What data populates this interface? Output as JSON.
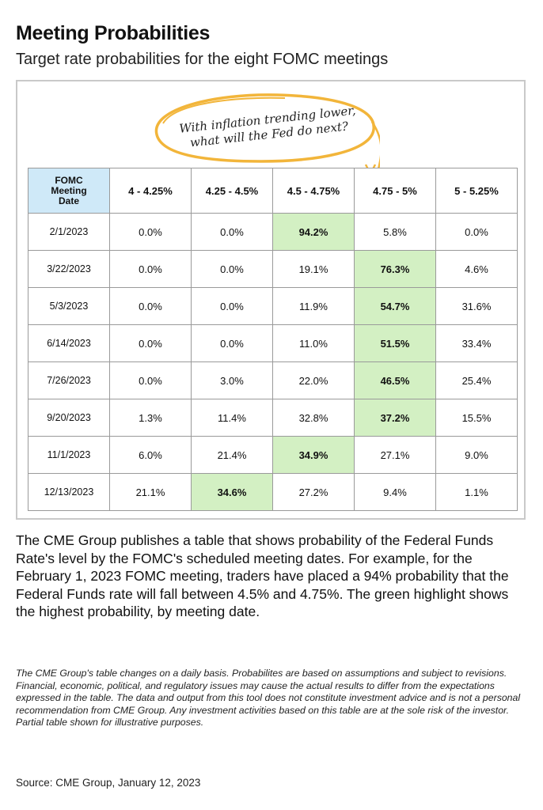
{
  "title": "Meeting Probabilities",
  "subtitle": "Target rate probabilities for the eight FOMC meetings",
  "callout": {
    "line1": "With inflation trending lower,",
    "line2": "what will the Fed do next?"
  },
  "colors": {
    "highlight": "#d3f0c3",
    "header_date_bg": "#cfe9f8",
    "callout_ellipse": "#f2b53a"
  },
  "chart_data": {
    "type": "table",
    "corner_header": [
      "FOMC",
      "Meeting",
      "Date"
    ],
    "columns": [
      "4 - 4.25%",
      "4.25 - 4.5%",
      "4.5 - 4.75%",
      "4.75 - 5%",
      "5 - 5.25%"
    ],
    "rows": [
      {
        "date": "2/1/2023",
        "values": [
          "0.0%",
          "0.0%",
          "94.2%",
          "5.8%",
          "0.0%"
        ],
        "highlight": 2
      },
      {
        "date": "3/22/2023",
        "values": [
          "0.0%",
          "0.0%",
          "19.1%",
          "76.3%",
          "4.6%"
        ],
        "highlight": 3
      },
      {
        "date": "5/3/2023",
        "values": [
          "0.0%",
          "0.0%",
          "11.9%",
          "54.7%",
          "31.6%"
        ],
        "highlight": 3
      },
      {
        "date": "6/14/2023",
        "values": [
          "0.0%",
          "0.0%",
          "11.0%",
          "51.5%",
          "33.4%"
        ],
        "highlight": 3
      },
      {
        "date": "7/26/2023",
        "values": [
          "0.0%",
          "3.0%",
          "22.0%",
          "46.5%",
          "25.4%"
        ],
        "highlight": 3
      },
      {
        "date": "9/20/2023",
        "values": [
          "1.3%",
          "11.4%",
          "32.8%",
          "37.2%",
          "15.5%"
        ],
        "highlight": 3
      },
      {
        "date": "11/1/2023",
        "values": [
          "6.0%",
          "21.4%",
          "34.9%",
          "27.1%",
          "9.0%"
        ],
        "highlight": 2
      },
      {
        "date": "12/13/2023",
        "values": [
          "21.1%",
          "34.6%",
          "27.2%",
          "9.4%",
          "1.1%"
        ],
        "highlight": 1
      }
    ]
  },
  "body_text": "The CME Group publishes a table that shows probability of the Federal Funds Rate's level by the FOMC's scheduled meeting dates. For example, for the February 1, 2023 FOMC meeting, traders have placed a 94% probability that the Federal Funds rate will fall between 4.5% and 4.75%. The green highlight shows the highest probability, by meeting date.",
  "disclaimer": "The CME Group's table changes on a daily basis. Probabilites are based on assumptions and subject to revisions. Financial, economic, political, and regulatory issues may cause the actual results to differ from the expectations expressed in the table. The data and output from this tool does not constitute investment advice and is not a personal recommendation from CME Group.  Any investment activities based on this table are at the sole risk of the investor. Partial table shown for illustrative purposes.",
  "source": "Source: CME Group, January 12, 2023"
}
